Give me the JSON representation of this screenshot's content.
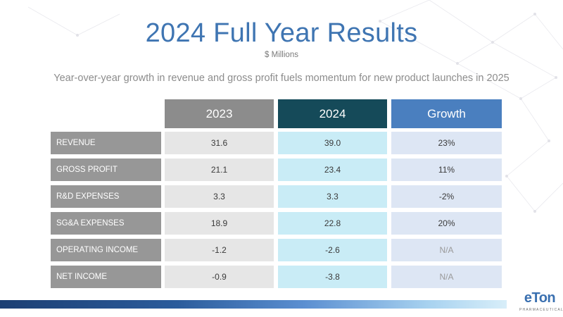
{
  "slide": {
    "title": "2024 Full Year Results",
    "subtitle": "$ Millions",
    "tagline": "Year-over-year growth in revenue and gross profit fuels momentum for new product launches in 2025"
  },
  "table": {
    "headers": [
      "2023",
      "2024",
      "Growth"
    ],
    "rows": [
      {
        "label": "REVENUE",
        "y2023": "31.6",
        "y2024": "39.0",
        "growth": "23%"
      },
      {
        "label": "GROSS PROFIT",
        "y2023": "21.1",
        "y2024": "23.4",
        "growth": "11%"
      },
      {
        "label": "R&D EXPENSES",
        "y2023": "3.3",
        "y2024": "3.3",
        "growth": "-2%"
      },
      {
        "label": "SG&A EXPENSES",
        "y2023": "18.9",
        "y2024": "22.8",
        "growth": "20%"
      },
      {
        "label": "OPERATING INCOME",
        "y2023": "-1.2",
        "y2024": "-2.6",
        "growth": "N/A"
      },
      {
        "label": "NET INCOME",
        "y2023": "-0.9",
        "y2024": "-3.8",
        "growth": "N/A"
      }
    ]
  },
  "logo": {
    "name": "eTon",
    "tagline": "PHARMACEUTICALS"
  },
  "colors": {
    "title": "#3f75b2",
    "header_2023": "#8c8c8c",
    "header_2024": "#154a59",
    "header_growth": "#4a7fbf"
  }
}
